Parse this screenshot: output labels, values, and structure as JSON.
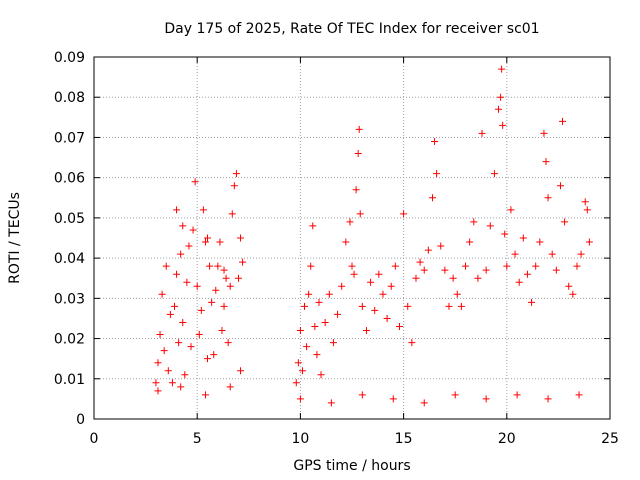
{
  "chart_data": {
    "type": "scatter",
    "title": "Day 175 of 2025, Rate Of TEC Index for receiver sc01",
    "xlabel": "GPS time / hours",
    "ylabel": "ROTI / TECUs",
    "xlim": [
      0,
      25
    ],
    "ylim": [
      0,
      0.09
    ],
    "x_ticks": [
      0,
      5,
      10,
      15,
      20,
      25
    ],
    "x_tick_labels": [
      "0",
      "5",
      "10",
      "15",
      "20",
      "25"
    ],
    "y_ticks": [
      0,
      0.01,
      0.02,
      0.03,
      0.04,
      0.05,
      0.06,
      0.07,
      0.08,
      0.09
    ],
    "y_tick_labels": [
      "0",
      "0.01",
      "0.02",
      "0.03",
      "0.04",
      "0.05",
      "0.06",
      "0.07",
      "0.08",
      "0.09"
    ],
    "grid": true,
    "marker": "+",
    "marker_color": "#ff0000",
    "series": [
      {
        "values": [
          [
            3.0,
            0.009
          ],
          [
            3.1,
            0.014
          ],
          [
            3.2,
            0.021
          ],
          [
            3.3,
            0.031
          ],
          [
            3.4,
            0.017
          ],
          [
            3.5,
            0.038
          ],
          [
            3.6,
            0.012
          ],
          [
            3.7,
            0.026
          ],
          [
            3.8,
            0.009
          ],
          [
            3.9,
            0.028
          ],
          [
            4.0,
            0.036
          ],
          [
            4.1,
            0.019
          ],
          [
            4.2,
            0.041
          ],
          [
            4.3,
            0.024
          ],
          [
            4.4,
            0.011
          ],
          [
            4.5,
            0.034
          ],
          [
            4.6,
            0.043
          ],
          [
            4.7,
            0.018
          ],
          [
            4.8,
            0.047
          ],
          [
            4.9,
            0.059
          ],
          [
            5.0,
            0.033
          ],
          [
            5.1,
            0.021
          ],
          [
            5.2,
            0.027
          ],
          [
            5.3,
            0.052
          ],
          [
            5.4,
            0.044
          ],
          [
            5.5,
            0.015
          ],
          [
            5.6,
            0.038
          ],
          [
            5.7,
            0.029
          ],
          [
            5.8,
            0.016
          ],
          [
            5.9,
            0.032
          ],
          [
            6.0,
            0.038
          ],
          [
            6.1,
            0.044
          ],
          [
            6.2,
            0.022
          ],
          [
            6.3,
            0.028
          ],
          [
            6.4,
            0.035
          ],
          [
            6.5,
            0.019
          ],
          [
            6.6,
            0.033
          ],
          [
            6.7,
            0.051
          ],
          [
            6.8,
            0.058
          ],
          [
            6.9,
            0.061
          ],
          [
            7.0,
            0.035
          ],
          [
            7.1,
            0.045
          ],
          [
            7.2,
            0.039
          ],
          [
            3.1,
            0.007
          ],
          [
            4.2,
            0.008
          ],
          [
            5.4,
            0.006
          ],
          [
            6.6,
            0.008
          ],
          [
            7.1,
            0.012
          ],
          [
            4.0,
            0.052
          ],
          [
            4.3,
            0.048
          ],
          [
            5.5,
            0.045
          ],
          [
            6.3,
            0.037
          ],
          [
            9.8,
            0.009
          ],
          [
            9.9,
            0.014
          ],
          [
            10.0,
            0.022
          ],
          [
            10.1,
            0.012
          ],
          [
            10.2,
            0.028
          ],
          [
            10.3,
            0.018
          ],
          [
            10.4,
            0.031
          ],
          [
            10.5,
            0.038
          ],
          [
            10.6,
            0.048
          ],
          [
            10.7,
            0.023
          ],
          [
            10.8,
            0.016
          ],
          [
            10.9,
            0.029
          ],
          [
            11.0,
            0.011
          ],
          [
            11.2,
            0.024
          ],
          [
            11.4,
            0.031
          ],
          [
            11.6,
            0.019
          ],
          [
            11.8,
            0.026
          ],
          [
            12.0,
            0.033
          ],
          [
            12.2,
            0.044
          ],
          [
            12.4,
            0.049
          ],
          [
            12.5,
            0.038
          ],
          [
            12.6,
            0.036
          ],
          [
            12.7,
            0.057
          ],
          [
            12.8,
            0.066
          ],
          [
            12.85,
            0.072
          ],
          [
            12.9,
            0.051
          ],
          [
            13.0,
            0.028
          ],
          [
            13.2,
            0.022
          ],
          [
            13.4,
            0.034
          ],
          [
            13.6,
            0.027
          ],
          [
            13.8,
            0.036
          ],
          [
            14.0,
            0.031
          ],
          [
            14.2,
            0.025
          ],
          [
            14.4,
            0.033
          ],
          [
            14.6,
            0.038
          ],
          [
            14.8,
            0.023
          ],
          [
            15.0,
            0.051
          ],
          [
            15.2,
            0.028
          ],
          [
            15.4,
            0.019
          ],
          [
            15.6,
            0.035
          ],
          [
            15.8,
            0.039
          ],
          [
            16.0,
            0.037
          ],
          [
            16.2,
            0.042
          ],
          [
            16.4,
            0.055
          ],
          [
            16.5,
            0.069
          ],
          [
            16.6,
            0.061
          ],
          [
            16.8,
            0.043
          ],
          [
            17.0,
            0.037
          ],
          [
            17.2,
            0.028
          ],
          [
            17.4,
            0.035
          ],
          [
            17.6,
            0.031
          ],
          [
            17.8,
            0.028
          ],
          [
            18.0,
            0.038
          ],
          [
            18.2,
            0.044
          ],
          [
            18.4,
            0.049
          ],
          [
            18.6,
            0.035
          ],
          [
            18.8,
            0.071
          ],
          [
            19.0,
            0.037
          ],
          [
            19.2,
            0.048
          ],
          [
            19.4,
            0.061
          ],
          [
            19.6,
            0.077
          ],
          [
            19.7,
            0.08
          ],
          [
            19.75,
            0.087
          ],
          [
            19.8,
            0.073
          ],
          [
            19.9,
            0.046
          ],
          [
            20.0,
            0.038
          ],
          [
            20.2,
            0.052
          ],
          [
            20.4,
            0.041
          ],
          [
            20.6,
            0.034
          ],
          [
            20.8,
            0.045
          ],
          [
            21.0,
            0.036
          ],
          [
            21.2,
            0.029
          ],
          [
            21.4,
            0.038
          ],
          [
            21.6,
            0.044
          ],
          [
            21.8,
            0.071
          ],
          [
            21.9,
            0.064
          ],
          [
            22.0,
            0.055
          ],
          [
            22.2,
            0.041
          ],
          [
            22.4,
            0.037
          ],
          [
            22.6,
            0.058
          ],
          [
            22.7,
            0.074
          ],
          [
            22.8,
            0.049
          ],
          [
            23.0,
            0.033
          ],
          [
            23.2,
            0.031
          ],
          [
            23.4,
            0.038
          ],
          [
            23.6,
            0.041
          ],
          [
            23.8,
            0.054
          ],
          [
            23.9,
            0.052
          ],
          [
            24.0,
            0.044
          ],
          [
            10.0,
            0.005
          ],
          [
            11.5,
            0.004
          ],
          [
            13.0,
            0.006
          ],
          [
            14.5,
            0.005
          ],
          [
            16.0,
            0.004
          ],
          [
            17.5,
            0.006
          ],
          [
            19.0,
            0.005
          ],
          [
            20.5,
            0.006
          ],
          [
            22.0,
            0.005
          ],
          [
            23.5,
            0.006
          ]
        ]
      }
    ]
  }
}
